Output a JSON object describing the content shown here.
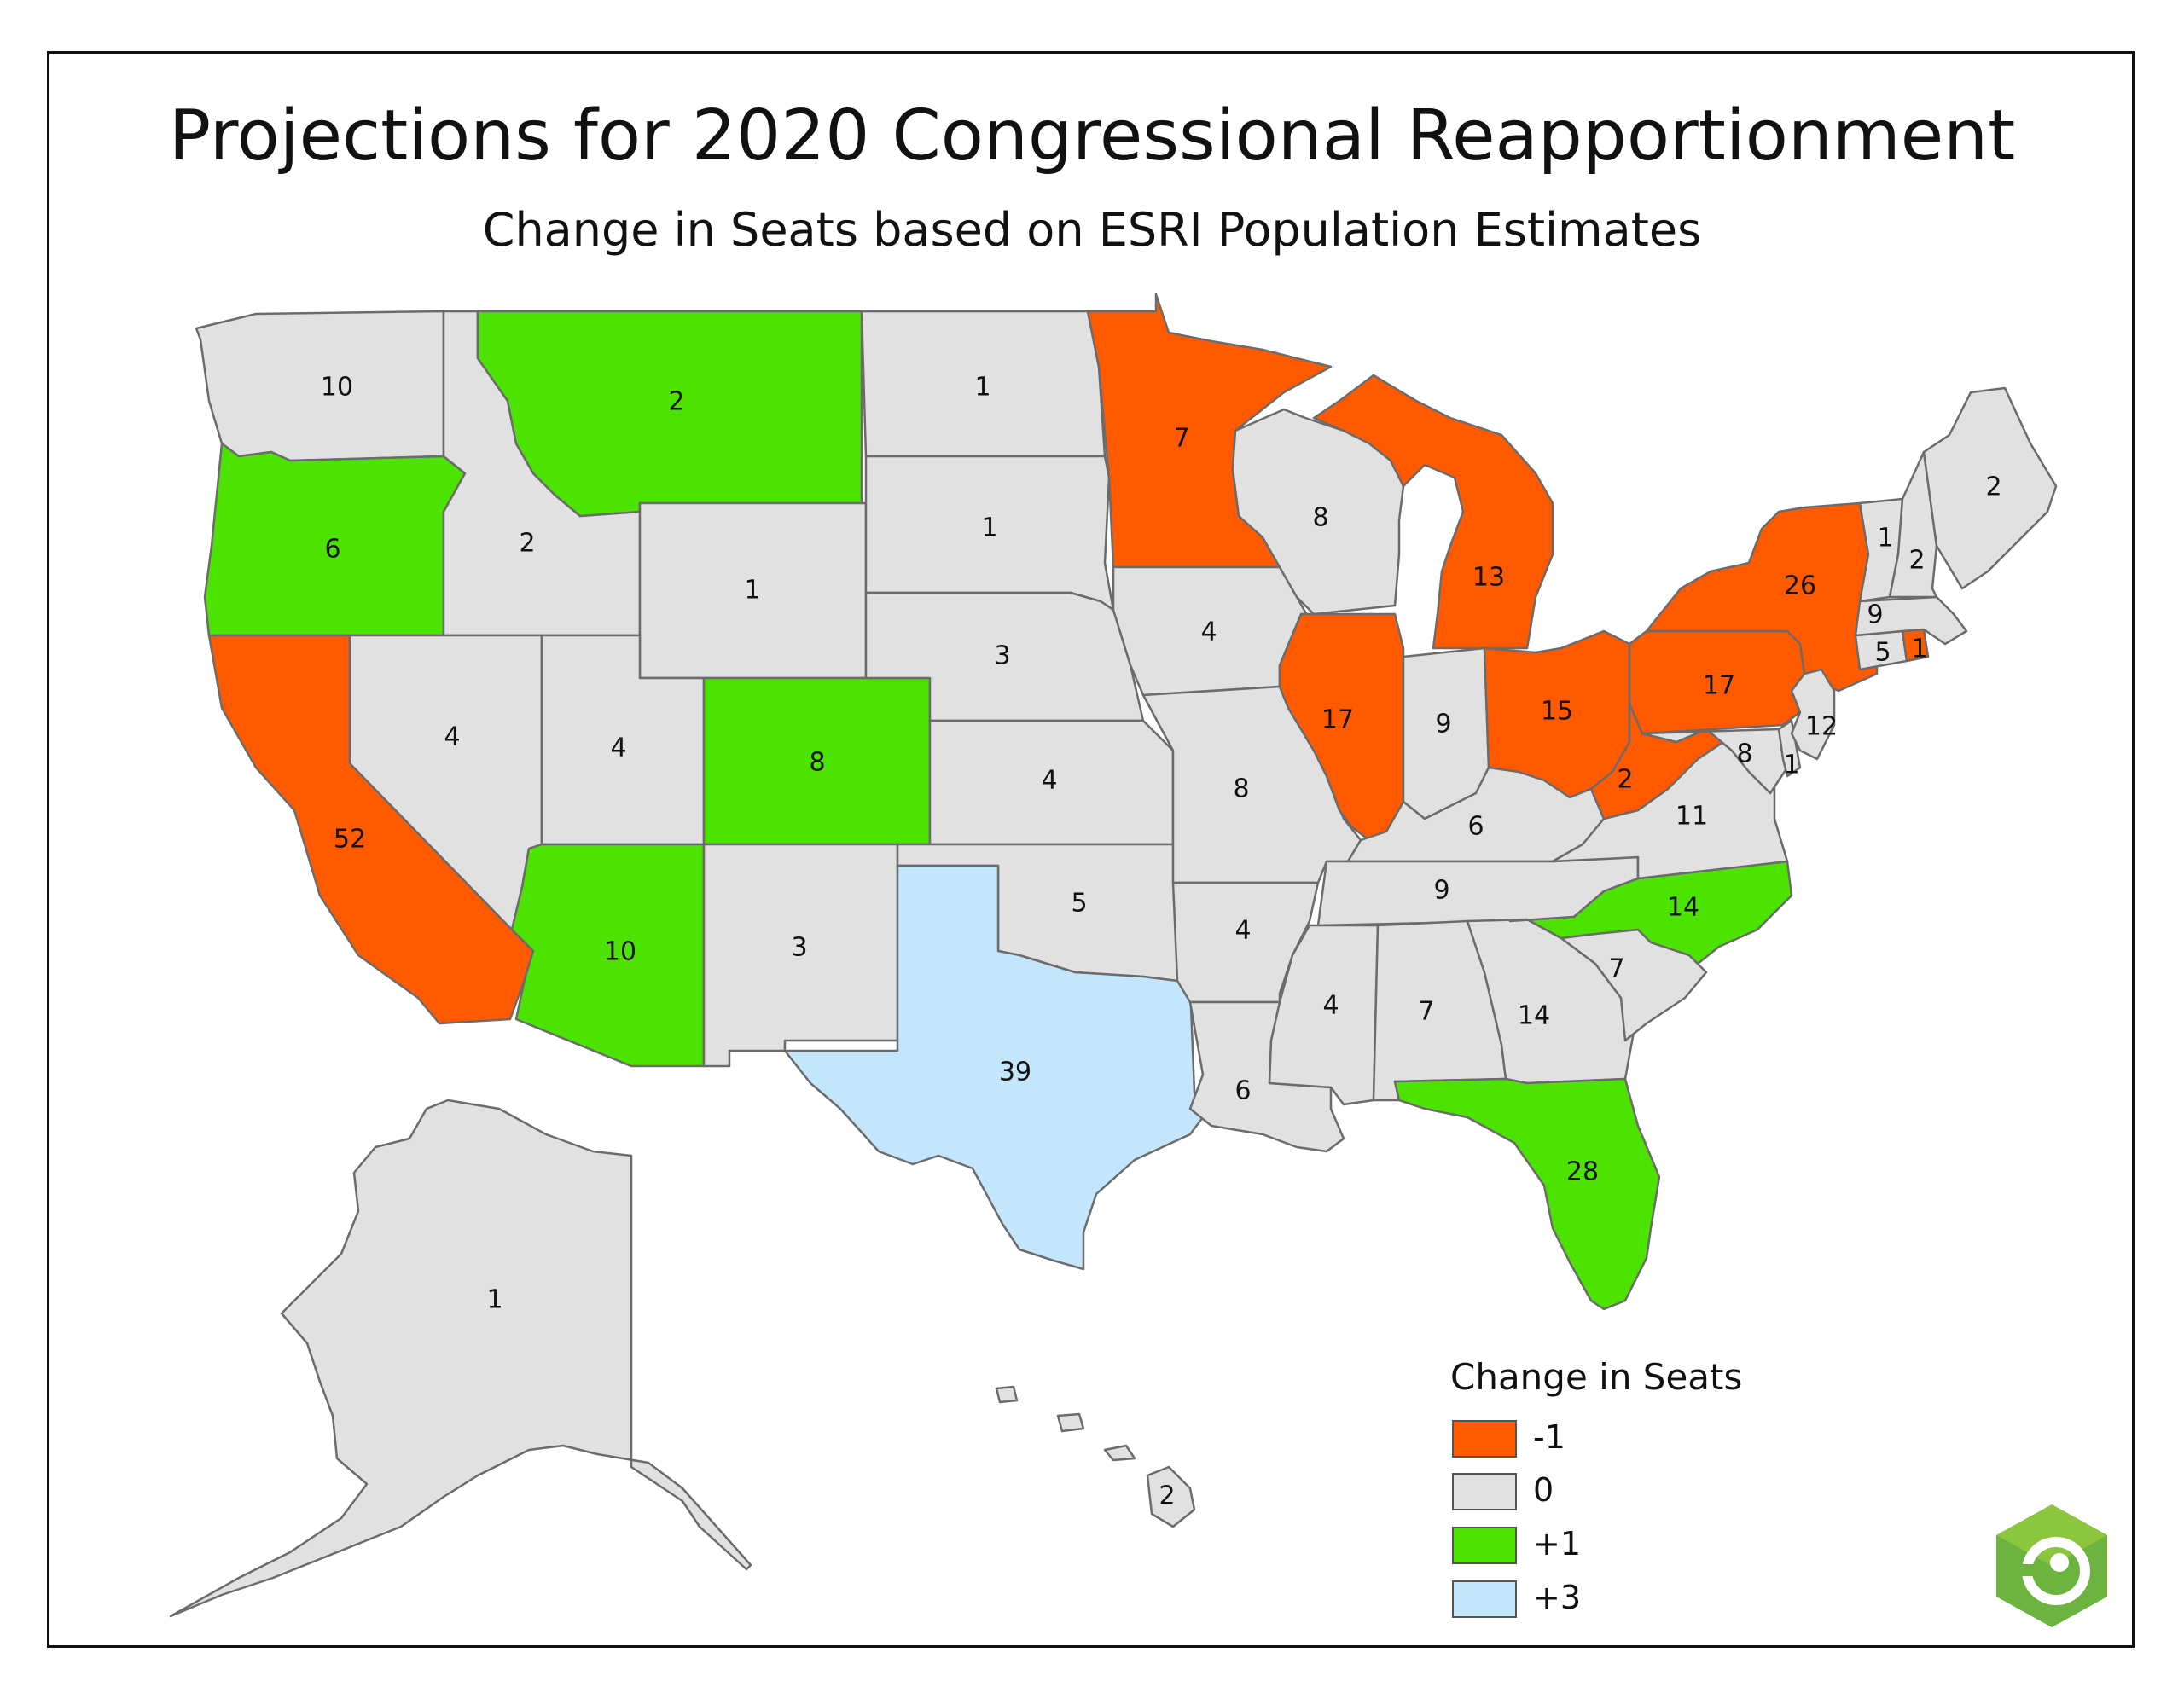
{
  "title": "Projections for 2020 Congressional Reapportionment",
  "subtitle": "Change in Seats based on ESRI Population Estimates",
  "colors": {
    "minus1": "#ff5a00",
    "zero": "#e1e1e1",
    "plus1": "#4de300",
    "plus3": "#c4e6fc"
  },
  "legend": {
    "title": "Change in Seats",
    "items": [
      {
        "label": "-1",
        "class": "minus1"
      },
      {
        "label": "0",
        "class": "zero"
      },
      {
        "label": "+1",
        "class": "plus1"
      },
      {
        "label": "+3",
        "class": "plus3"
      }
    ]
  },
  "states": {
    "WA": {
      "seats": "10",
      "class": "zero"
    },
    "OR": {
      "seats": "6",
      "class": "plus1"
    },
    "CA": {
      "seats": "52",
      "class": "minus1"
    },
    "ID": {
      "seats": "2",
      "class": "zero"
    },
    "NV": {
      "seats": "4",
      "class": "zero"
    },
    "MT": {
      "seats": "2",
      "class": "plus1"
    },
    "WY": {
      "seats": "1",
      "class": "zero"
    },
    "UT": {
      "seats": "4",
      "class": "zero"
    },
    "AZ": {
      "seats": "10",
      "class": "plus1"
    },
    "CO": {
      "seats": "8",
      "class": "plus1"
    },
    "NM": {
      "seats": "3",
      "class": "zero"
    },
    "ND": {
      "seats": "1",
      "class": "zero"
    },
    "SD": {
      "seats": "1",
      "class": "zero"
    },
    "NE": {
      "seats": "3",
      "class": "zero"
    },
    "KS": {
      "seats": "4",
      "class": "zero"
    },
    "OK": {
      "seats": "5",
      "class": "zero"
    },
    "TX": {
      "seats": "39",
      "class": "plus3"
    },
    "MN": {
      "seats": "7",
      "class": "minus1"
    },
    "IA": {
      "seats": "4",
      "class": "zero"
    },
    "MO": {
      "seats": "8",
      "class": "zero"
    },
    "AR": {
      "seats": "4",
      "class": "zero"
    },
    "LA": {
      "seats": "6",
      "class": "zero"
    },
    "WI": {
      "seats": "8",
      "class": "zero"
    },
    "IL": {
      "seats": "17",
      "class": "minus1"
    },
    "MI": {
      "seats": "13",
      "class": "minus1"
    },
    "IN": {
      "seats": "9",
      "class": "zero"
    },
    "OH": {
      "seats": "15",
      "class": "minus1"
    },
    "KY": {
      "seats": "6",
      "class": "zero"
    },
    "TN": {
      "seats": "9",
      "class": "zero"
    },
    "MS": {
      "seats": "4",
      "class": "zero"
    },
    "AL": {
      "seats": "7",
      "class": "zero"
    },
    "GA": {
      "seats": "14",
      "class": "zero"
    },
    "FL": {
      "seats": "28",
      "class": "plus1"
    },
    "SC": {
      "seats": "7",
      "class": "zero"
    },
    "NC": {
      "seats": "14",
      "class": "plus1"
    },
    "VA": {
      "seats": "11",
      "class": "zero"
    },
    "WV": {
      "seats": "2",
      "class": "minus1"
    },
    "PA": {
      "seats": "17",
      "class": "minus1"
    },
    "NY": {
      "seats": "26",
      "class": "minus1"
    },
    "NJ": {
      "seats": "12",
      "class": "zero"
    },
    "MD": {
      "seats": "8",
      "class": "zero"
    },
    "DE": {
      "seats": "1",
      "class": "zero"
    },
    "CT": {
      "seats": "5",
      "class": "zero"
    },
    "RI": {
      "seats": "1",
      "class": "minus1"
    },
    "MA": {
      "seats": "9",
      "class": "zero"
    },
    "VT": {
      "seats": "1",
      "class": "zero"
    },
    "NH": {
      "seats": "2",
      "class": "zero"
    },
    "ME": {
      "seats": "2",
      "class": "zero"
    },
    "AK": {
      "seats": "1",
      "class": "zero"
    },
    "HI": {
      "seats": "2",
      "class": "zero"
    }
  }
}
